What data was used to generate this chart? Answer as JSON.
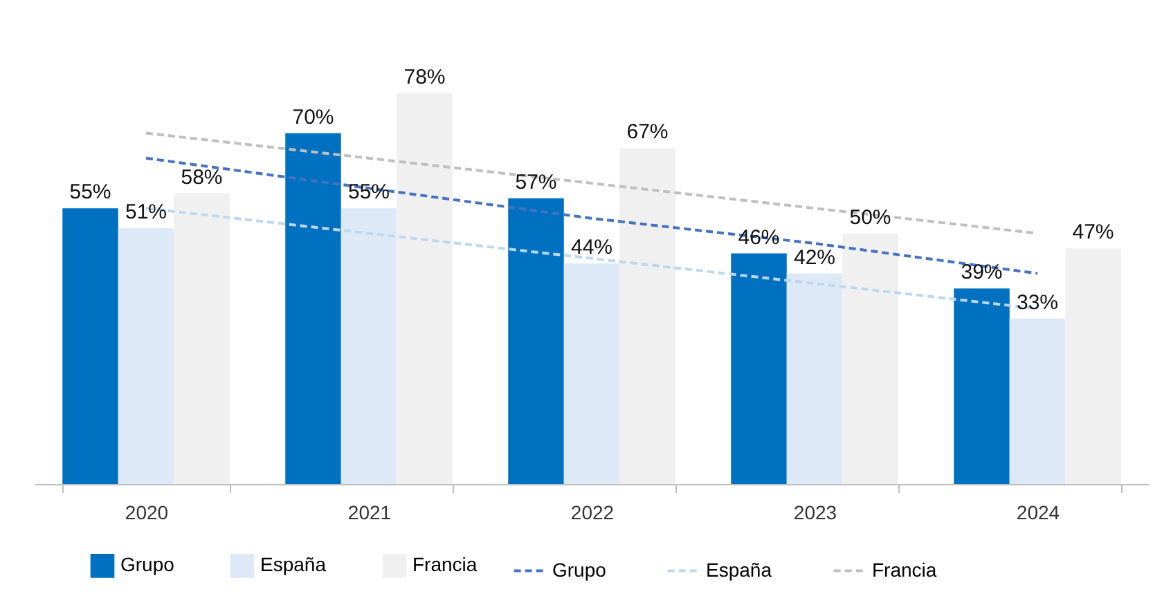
{
  "chart_data": {
    "type": "bar",
    "categories": [
      "2020",
      "2021",
      "2022",
      "2023",
      "2024"
    ],
    "series": [
      {
        "name": "Grupo",
        "color": "#0070c0",
        "values": [
          55,
          70,
          57,
          46,
          39
        ],
        "value_labels": [
          "55%",
          "70%",
          "57%",
          "46%",
          "39%"
        ]
      },
      {
        "name": "España",
        "color": "#dde9f6",
        "values": [
          51,
          55,
          44,
          42,
          33
        ],
        "value_labels": [
          "51%",
          "55%",
          "44%",
          "42%",
          "33%"
        ]
      },
      {
        "name": "Francia",
        "color": "#f0f0f0",
        "values": [
          58,
          78,
          67,
          50,
          47
        ],
        "value_labels": [
          "58%",
          "78%",
          "67%",
          "50%",
          "47%"
        ]
      },
      {
        "name": "Grupo",
        "type": "line",
        "line_style": "dashed",
        "color": "#4472c4",
        "values": [
          65,
          59,
          53,
          48,
          42
        ]
      },
      {
        "name": "España",
        "type": "line",
        "line_style": "dashed",
        "color": "#bdd7ee",
        "values": [
          55,
          50,
          45,
          40,
          35
        ]
      },
      {
        "name": "Francia",
        "type": "line",
        "line_style": "dashed",
        "color": "#bfbfbf",
        "values": [
          70,
          65,
          60,
          55,
          50
        ]
      }
    ],
    "legend": "bottom",
    "grid": false
  }
}
